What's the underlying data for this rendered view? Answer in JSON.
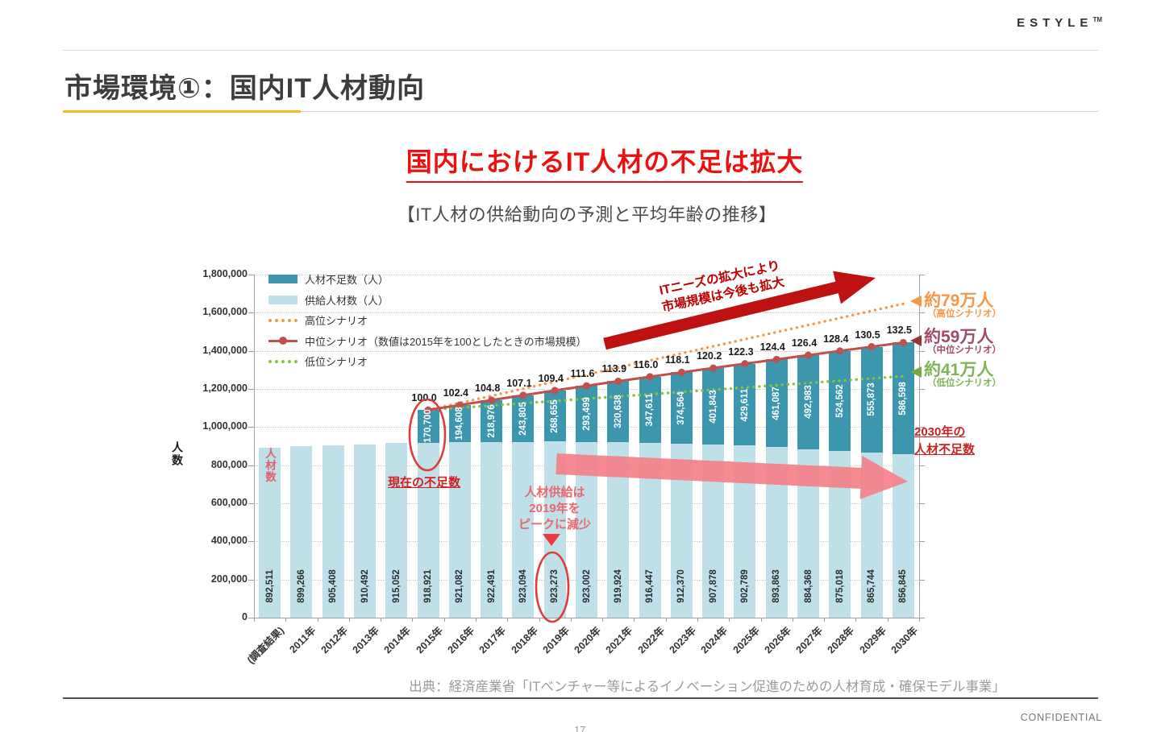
{
  "brand": {
    "logo": "ESTYLE",
    "tm": "TM"
  },
  "header": {
    "title": "市場環境①：国内IT人材動向"
  },
  "headline": {
    "main": "国内におけるIT人材の不足は拡大",
    "sub": "【IT人材の供給動向の予測と平均年齢の推移】"
  },
  "footer": {
    "source": "出典：経済産業省「ITベンチャー等によるイノベーション促進のための人材育成・確保モデル事業」",
    "confidential": "CONFIDENTIAL",
    "page_number": "17"
  },
  "colors": {
    "accent_yellow": "#FDB813",
    "heading_red": "#EB1111",
    "note_red": "#CC2222",
    "peak_note_red": "#E96870",
    "arrow_dark_red": "#BE1212",
    "arrow_pink": "#F58288",
    "overlay_red": "#E0606A",
    "supply_bar": "#BFE0E9",
    "shortage_bar": "#3B96AE"
  },
  "chart_data": {
    "type": "bar",
    "title": "",
    "ylabel": "人数",
    "ylim": [
      0,
      1800000
    ],
    "ytick_step": 200000,
    "ytick_labels": [
      "0",
      "200,000",
      "400,000",
      "600,000",
      "800,000",
      "1,000,000",
      "1,200,000",
      "1,400,000",
      "1,600,000",
      "1,800,000"
    ],
    "categories": [
      "(調査結果)",
      "2011年",
      "2012年",
      "2013年",
      "2014年",
      "2015年",
      "2016年",
      "2017年",
      "2018年",
      "2019年",
      "2020年",
      "2021年",
      "2022年",
      "2023年",
      "2024年",
      "2025年",
      "2026年",
      "2027年",
      "2028年",
      "2029年",
      "2030年"
    ],
    "series": [
      {
        "name": "供給人材数（人）",
        "role": "supply",
        "color": "#BFE0E9",
        "values": [
          892511,
          899266,
          905408,
          910492,
          915052,
          918921,
          921082,
          922491,
          923094,
          923273,
          923002,
          919924,
          916447,
          912370,
          907878,
          902789,
          893863,
          884368,
          875018,
          865744,
          856845
        ]
      },
      {
        "name": "人材不足数（人）",
        "role": "shortage",
        "color": "#3B96AE",
        "values": [
          null,
          null,
          null,
          null,
          null,
          170700,
          194608,
          218976,
          243805,
          268655,
          293499,
          320638,
          347611,
          374564,
          401843,
          429611,
          461087,
          492983,
          524562,
          555873,
          586598
        ]
      }
    ],
    "scenario_lines": {
      "high": {
        "label": "高位シナリオ",
        "color": "#F79646",
        "style": "dotted",
        "total_2030": 1646845
      },
      "mid": {
        "label": "中位シナリオ（数値は2015年を100としたときの市場規模）",
        "color": "#C0504D",
        "style": "solid-markers",
        "index_labels": [
          "100.0",
          "102.4",
          "104.8",
          "107.1",
          "109.4",
          "111.6",
          "113.9",
          "116.0",
          "118.1",
          "120.2",
          "122.3",
          "124.4",
          "126.4",
          "128.4",
          "130.5",
          "132.5"
        ]
      },
      "low": {
        "label": "低位シナリオ",
        "color": "#86C440",
        "style": "dotted",
        "total_2030": 1266845
      }
    },
    "legend": [
      {
        "label": "人材不足数（人）",
        "swatch": "bar",
        "color": "#3B96AE"
      },
      {
        "label": "供給人材数（人）",
        "swatch": "bar",
        "color": "#BFE0E9"
      },
      {
        "label": "高位シナリオ",
        "swatch": "dots",
        "color": "#F79646"
      },
      {
        "label": "中位シナリオ（数値は2015年を100としたときの市場規模）",
        "swatch": "line-marker",
        "color": "#C0504D"
      },
      {
        "label": "低位シナリオ",
        "swatch": "dots",
        "color": "#86C440"
      }
    ],
    "annotations": {
      "market_note": [
        "ITニーズの拡大により",
        "市場規模は今後も拡大"
      ],
      "current_shortage": "現在の不足数",
      "supply_peak": [
        "人材供給は",
        "2019年を",
        "ピークに減少"
      ],
      "shortage_2030": [
        "2030年の",
        "人材不足数"
      ],
      "bar_overlay": "人材数",
      "callouts": [
        {
          "value": "約79万人",
          "scenario": "（高位シナリオ）",
          "color": "#F79646",
          "arrow_color": "#F79646"
        },
        {
          "value": "約59万人",
          "scenario": "（中位シナリオ）",
          "color": "#A34B64",
          "arrow_color": "#943634"
        },
        {
          "value": "約41万人",
          "scenario": "（低位シナリオ）",
          "color": "#7EB356",
          "arrow_color": "#76A93F"
        }
      ]
    }
  }
}
